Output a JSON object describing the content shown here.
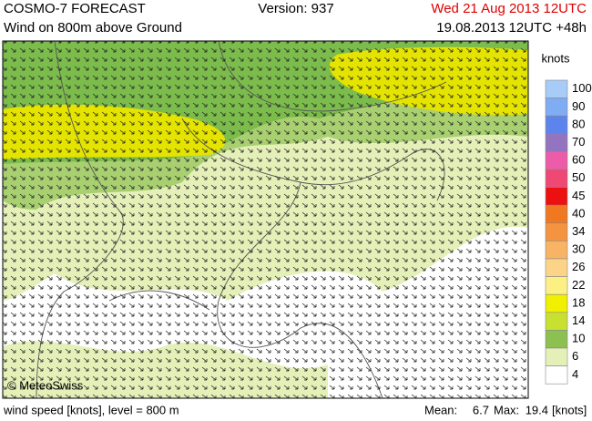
{
  "header": {
    "model": "COSMO-7 FORECAST",
    "version": "Version: 937",
    "valid": "Wed 21 Aug 2013 12UTC",
    "field": "Wind on 800m above Ground",
    "run": "19.08.2013 12UTC +48h"
  },
  "map": {
    "copyright": "© MeteoSwiss"
  },
  "legend": {
    "unit": "knots",
    "levels": [
      {
        "value": 100,
        "color": "#a8ccf8"
      },
      {
        "value": 90,
        "color": "#80acf4"
      },
      {
        "value": 80,
        "color": "#5c84ec"
      },
      {
        "value": 70,
        "color": "#9474c0"
      },
      {
        "value": 60,
        "color": "#ec5ca8"
      },
      {
        "value": 50,
        "color": "#f04874"
      },
      {
        "value": 45,
        "color": "#ec1010"
      },
      {
        "value": 40,
        "color": "#f07820"
      },
      {
        "value": 34,
        "color": "#f49440"
      },
      {
        "value": 30,
        "color": "#f8b464"
      },
      {
        "value": 26,
        "color": "#fcd488"
      },
      {
        "value": 22,
        "color": "#fcf084"
      },
      {
        "value": 18,
        "color": "#f0f000"
      },
      {
        "value": 14,
        "color": "#c8e030"
      },
      {
        "value": 10,
        "color": "#8cc050"
      },
      {
        "value": 6,
        "color": "#e4f0b8"
      },
      {
        "value": 4,
        "color": "#ffffff"
      }
    ]
  },
  "footer": {
    "description": "wind speed [knots], level = 800 m",
    "mean_label": "Mean:",
    "mean": 6.7,
    "max_label": "Max:",
    "max": 19.4,
    "unit": "[knots]"
  }
}
